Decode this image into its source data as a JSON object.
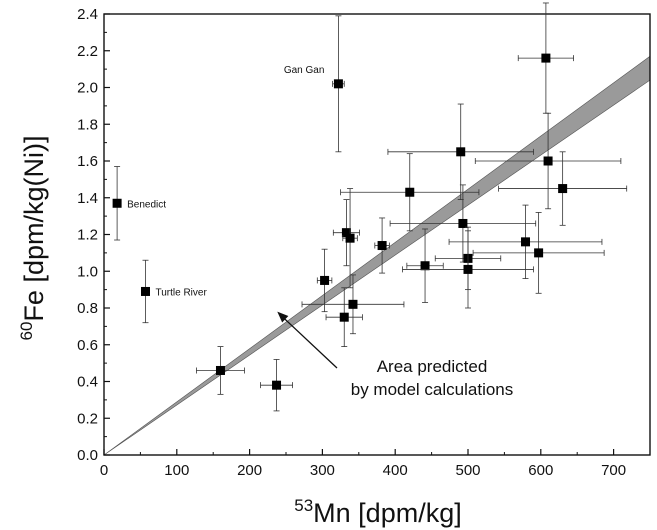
{
  "chart_data": {
    "type": "scatter",
    "xlabel": {
      "sup": "53",
      "text": "Mn [dpm/kg]"
    },
    "ylabel": {
      "sup": "60",
      "text": "Fe [dpm/kg(Ni)]"
    },
    "xlim": [
      0,
      750
    ],
    "ylim": [
      0,
      2.4
    ],
    "xticks": [
      0,
      100,
      200,
      300,
      400,
      500,
      600,
      700
    ],
    "yticks": [
      "0.0",
      "0.2",
      "0.4",
      "0.6",
      "0.8",
      "1.0",
      "1.2",
      "1.4",
      "1.6",
      "1.8",
      "2.0",
      "2.2",
      "2.4"
    ],
    "grid": false,
    "points": [
      {
        "x": 18,
        "y": 1.37,
        "xerr": 5,
        "yerr": 0.2,
        "label": "Benedict"
      },
      {
        "x": 57,
        "y": 0.89,
        "xerr": 5,
        "yerr": 0.17,
        "label": "Turtle River"
      },
      {
        "x": 322,
        "y": 2.02,
        "xerr": 8,
        "yerr": 0.37,
        "label": "Gan Gan"
      },
      {
        "x": 160,
        "y": 0.46,
        "xerr": 33,
        "yerr": 0.13
      },
      {
        "x": 237,
        "y": 0.38,
        "xerr": 22,
        "yerr": 0.14
      },
      {
        "x": 303,
        "y": 0.95,
        "xerr": 10,
        "yerr": 0.17
      },
      {
        "x": 330,
        "y": 0.75,
        "xerr": 25,
        "yerr": 0.16
      },
      {
        "x": 342,
        "y": 0.82,
        "xerr": 70,
        "yerr": 0.16
      },
      {
        "x": 333,
        "y": 1.21,
        "xerr": 18,
        "yerr": 0.18
      },
      {
        "x": 338,
        "y": 1.18,
        "xerr": 10,
        "yerr": 0.27
      },
      {
        "x": 382,
        "y": 1.14,
        "xerr": 10,
        "yerr": 0.15
      },
      {
        "x": 420,
        "y": 1.43,
        "xerr": 95,
        "yerr": 0.21
      },
      {
        "x": 441,
        "y": 1.03,
        "xerr": 25,
        "yerr": 0.2
      },
      {
        "x": 490,
        "y": 1.65,
        "xerr": 100,
        "yerr": 0.26
      },
      {
        "x": 493,
        "y": 1.26,
        "xerr": 100,
        "yerr": 0.21
      },
      {
        "x": 500,
        "y": 1.07,
        "xerr": 45,
        "yerr": 0.17
      },
      {
        "x": 500,
        "y": 1.01,
        "xerr": 90,
        "yerr": 0.21
      },
      {
        "x": 579,
        "y": 1.16,
        "xerr": 105,
        "yerr": 0.2
      },
      {
        "x": 597,
        "y": 1.1,
        "xerr": 90,
        "yerr": 0.22
      },
      {
        "x": 607,
        "y": 2.16,
        "xerr": 38,
        "yerr": 0.3
      },
      {
        "x": 610,
        "y": 1.6,
        "xerr": 100,
        "yerr": 0.26
      },
      {
        "x": 630,
        "y": 1.45,
        "xerr": 88,
        "yerr": 0.2
      }
    ],
    "band": {
      "upper": [
        [
          0,
          0
        ],
        [
          750,
          2.17
        ]
      ],
      "lower": [
        [
          0,
          0
        ],
        [
          750,
          2.04
        ]
      ],
      "color": "#9a9a9a"
    },
    "annotation": {
      "lines": [
        "Area predicted",
        "by model calculations"
      ],
      "arrow_tip": [
        238,
        0.78
      ]
    }
  }
}
